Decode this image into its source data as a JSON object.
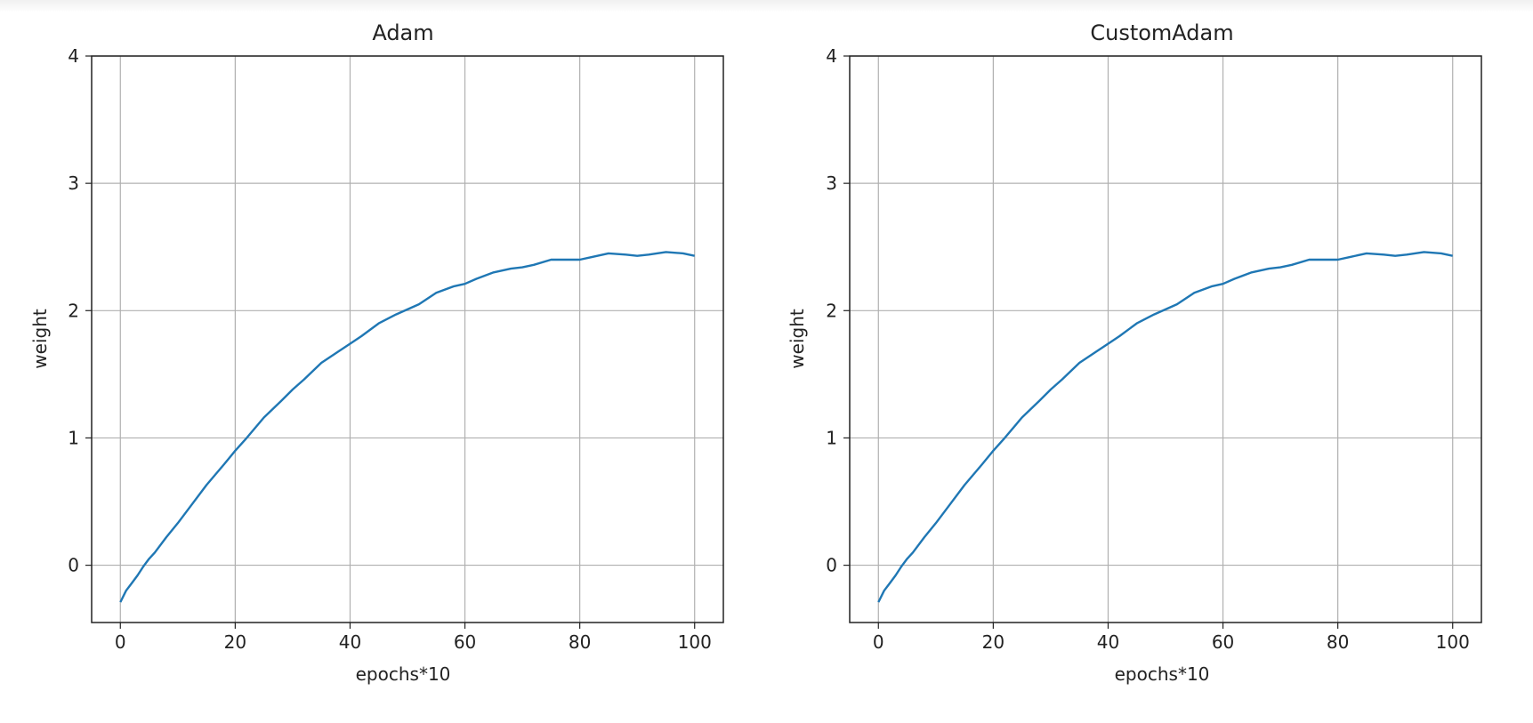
{
  "chart_data": [
    {
      "type": "line",
      "title": "Adam",
      "xlabel": "epochs*10",
      "ylabel": "weight",
      "xlim": [
        -5,
        105
      ],
      "ylim": [
        -0.45,
        4
      ],
      "xticks": [
        0,
        20,
        40,
        60,
        80,
        100
      ],
      "yticks": [
        0,
        1,
        2,
        3,
        4
      ],
      "grid": true,
      "color": "#1f77b4",
      "series": [
        {
          "x": [
            0,
            1,
            2,
            3,
            4,
            5,
            6,
            8,
            10,
            12,
            15,
            18,
            20,
            22,
            25,
            28,
            30,
            32,
            35,
            38,
            40,
            42,
            45,
            48,
            50,
            52,
            55,
            58,
            60,
            62,
            65,
            68,
            70,
            72,
            75,
            78,
            80,
            82,
            85,
            88,
            90,
            92,
            95,
            98,
            100
          ],
          "values": [
            -0.29,
            -0.2,
            -0.14,
            -0.08,
            -0.01,
            0.05,
            0.1,
            0.22,
            0.33,
            0.45,
            0.63,
            0.79,
            0.9,
            1.0,
            1.16,
            1.29,
            1.38,
            1.46,
            1.59,
            1.68,
            1.74,
            1.8,
            1.9,
            1.97,
            2.01,
            2.05,
            2.14,
            2.19,
            2.21,
            2.25,
            2.3,
            2.33,
            2.34,
            2.36,
            2.4,
            2.4,
            2.4,
            2.42,
            2.45,
            2.44,
            2.43,
            2.44,
            2.46,
            2.45,
            2.43
          ]
        }
      ]
    },
    {
      "type": "line",
      "title": "CustomAdam",
      "xlabel": "epochs*10",
      "ylabel": "weight",
      "xlim": [
        -5,
        105
      ],
      "ylim": [
        -0.45,
        4
      ],
      "xticks": [
        0,
        20,
        40,
        60,
        80,
        100
      ],
      "yticks": [
        0,
        1,
        2,
        3,
        4
      ],
      "grid": true,
      "color": "#1f77b4",
      "series": [
        {
          "x": [
            0,
            1,
            2,
            3,
            4,
            5,
            6,
            8,
            10,
            12,
            15,
            18,
            20,
            22,
            25,
            28,
            30,
            32,
            35,
            38,
            40,
            42,
            45,
            48,
            50,
            52,
            55,
            58,
            60,
            62,
            65,
            68,
            70,
            72,
            75,
            78,
            80,
            82,
            85,
            88,
            90,
            92,
            95,
            98,
            100
          ],
          "values": [
            -0.29,
            -0.2,
            -0.14,
            -0.08,
            -0.01,
            0.05,
            0.1,
            0.22,
            0.33,
            0.45,
            0.63,
            0.79,
            0.9,
            1.0,
            1.16,
            1.29,
            1.38,
            1.46,
            1.59,
            1.68,
            1.74,
            1.8,
            1.9,
            1.97,
            2.01,
            2.05,
            2.14,
            2.19,
            2.21,
            2.25,
            2.3,
            2.33,
            2.34,
            2.36,
            2.4,
            2.4,
            2.4,
            2.42,
            2.45,
            2.44,
            2.43,
            2.44,
            2.46,
            2.45,
            2.43
          ]
        }
      ]
    }
  ]
}
